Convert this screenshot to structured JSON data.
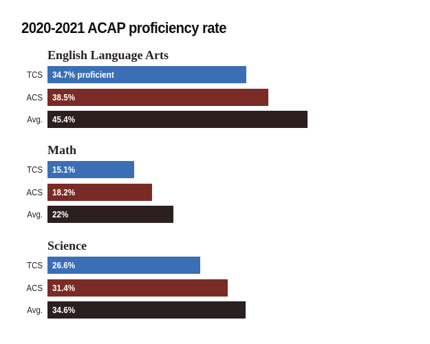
{
  "chart_data": {
    "type": "bar",
    "orientation": "horizontal",
    "title": "2020-2021 ACAP proficiency rate",
    "unit": "%",
    "colors": {
      "TCS": "#3a6fb6",
      "ACS": "#7a2b25",
      "Avg.": "#2b1f1f"
    },
    "groups": [
      {
        "name": "English Language Arts",
        "categories": [
          "TCS",
          "ACS",
          "Avg."
        ],
        "values": [
          34.7,
          38.5,
          45.4
        ],
        "labels": [
          "34.7% proficient",
          "38.5%",
          "45.4%"
        ]
      },
      {
        "name": "Math",
        "categories": [
          "TCS",
          "ACS",
          "Avg."
        ],
        "values": [
          15.1,
          18.2,
          22
        ],
        "labels": [
          "15.1%",
          "18.2%",
          "22%"
        ]
      },
      {
        "name": "Science",
        "categories": [
          "TCS",
          "ACS",
          "Avg."
        ],
        "values": [
          26.6,
          31.4,
          34.6
        ],
        "labels": [
          "26.6%",
          "31.4%",
          "34.6%"
        ]
      }
    ],
    "grid": false,
    "legend": "none"
  }
}
